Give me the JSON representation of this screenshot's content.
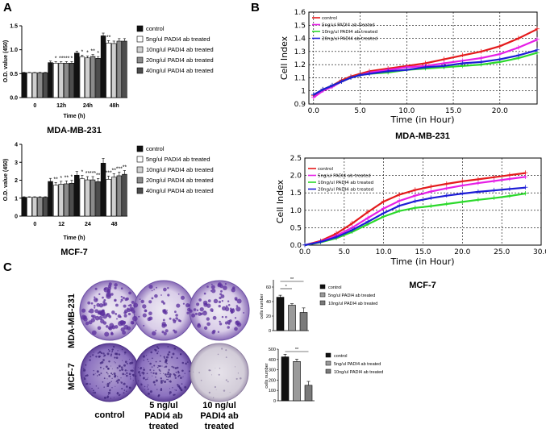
{
  "panels": {
    "a": "A",
    "b": "B",
    "c": "C"
  },
  "chart_data": [
    {
      "id": "a1",
      "type": "bar",
      "title": "MDA-MB-231",
      "xlabel": "Time (h)",
      "ylabel": "O.D. value (450)",
      "ylim": [
        0,
        1.5
      ],
      "yticks": [
        "0.0",
        "0.5",
        "1.0",
        "1.5"
      ],
      "categories": [
        "0",
        "12h",
        "24h",
        "48h"
      ],
      "series": [
        {
          "name": "control",
          "color": "#111111",
          "values": [
            0.52,
            0.73,
            0.93,
            1.29
          ]
        },
        {
          "name": "5ng/ul PADI4 ab treated",
          "color": "#ffffff",
          "values": [
            0.52,
            0.72,
            0.85,
            1.14
          ]
        },
        {
          "name": "10ng/ul PADI4 ab treated",
          "color": "#cfcfcf",
          "values": [
            0.52,
            0.72,
            0.83,
            1.13
          ]
        },
        {
          "name": "20ng/ul PADI4 ab treated",
          "color": "#8a8a8a",
          "values": [
            0.52,
            0.72,
            0.86,
            1.18
          ]
        },
        {
          "name": "40ng/ul PADI4 ab treated",
          "color": "#4d4d4d",
          "values": [
            0.52,
            0.72,
            0.82,
            1.18
          ]
        }
      ],
      "annotations": [
        "*",
        "**",
        "***",
        "*",
        "*",
        "*",
        "**",
        "*",
        "**"
      ]
    },
    {
      "id": "a2",
      "type": "bar",
      "title": "MCF-7",
      "xlabel": "Time (h)",
      "ylabel": "O.D. value (450)",
      "ylim": [
        0,
        4
      ],
      "yticks": [
        "0",
        "1",
        "2",
        "3",
        "4"
      ],
      "categories": [
        "0",
        "12",
        "24",
        "48"
      ],
      "series": [
        {
          "name": "control",
          "color": "#111111",
          "values": [
            1.05,
            1.93,
            2.28,
            2.95
          ]
        },
        {
          "name": "5ng/ul PADI4 ab treated",
          "color": "#ffffff",
          "values": [
            1.05,
            1.72,
            2.08,
            2.05
          ]
        },
        {
          "name": "10ng/ul PADI4 ab treated",
          "color": "#cfcfcf",
          "values": [
            1.05,
            1.78,
            2.02,
            2.17
          ]
        },
        {
          "name": "20ng/ul PADI4 ab treated",
          "color": "#8a8a8a",
          "values": [
            1.05,
            1.8,
            2.02,
            2.25
          ]
        },
        {
          "name": "40ng/ul PADI4 ab treated",
          "color": "#4d4d4d",
          "values": [
            1.05,
            1.83,
            1.92,
            2.33
          ]
        }
      ],
      "annotations": [
        "**",
        "*",
        "**",
        "*",
        "*",
        "**",
        "***",
        "**",
        "***",
        "**",
        "***",
        "**",
        "**",
        "**",
        "*"
      ]
    },
    {
      "id": "b1",
      "type": "line",
      "title": "MDA-MB-231",
      "xlabel": "Time (in Hour)",
      "ylabel": "Cell Index",
      "xlim": [
        -0.5,
        24.0
      ],
      "ylim": [
        0.9,
        1.6
      ],
      "xticks": [
        "0.0",
        "5.0",
        "10.0",
        "15.0",
        "20.0"
      ],
      "yticks": [
        "0.9",
        "1",
        "1.1",
        "1.2",
        "1.3",
        "1.4",
        "1.5",
        "1.6"
      ],
      "x": [
        0,
        1,
        2,
        3,
        4,
        5,
        6,
        8,
        10,
        12,
        14,
        16,
        18,
        20,
        22,
        24
      ],
      "series": [
        {
          "name": "control",
          "color": "#e41a1c",
          "values": [
            0.96,
            1.01,
            1.04,
            1.08,
            1.11,
            1.13,
            1.15,
            1.17,
            1.19,
            1.21,
            1.24,
            1.27,
            1.3,
            1.34,
            1.4,
            1.47
          ]
        },
        {
          "name": "5ng/ul PADI4 ab treated",
          "color": "#e61ee6",
          "values": [
            0.95,
            1.0,
            1.03,
            1.07,
            1.1,
            1.12,
            1.14,
            1.16,
            1.18,
            1.19,
            1.21,
            1.23,
            1.25,
            1.28,
            1.33,
            1.39
          ]
        },
        {
          "name": "10ng/ul PADI4 ab treated",
          "color": "#2bd92b",
          "values": [
            0.97,
            1.01,
            1.04,
            1.07,
            1.1,
            1.12,
            1.13,
            1.14,
            1.16,
            1.17,
            1.18,
            1.19,
            1.2,
            1.22,
            1.25,
            1.29
          ]
        },
        {
          "name": "20ng/ul PADI4 ab treated",
          "color": "#1c1cd6",
          "values": [
            0.97,
            1.01,
            1.04,
            1.07,
            1.1,
            1.12,
            1.13,
            1.15,
            1.16,
            1.18,
            1.19,
            1.21,
            1.22,
            1.24,
            1.27,
            1.31
          ]
        }
      ]
    },
    {
      "id": "b2",
      "type": "line",
      "title": "MCF-7",
      "xlabel": "Time (in Hour)",
      "ylabel": "Cell Index",
      "xlim": [
        0,
        30
      ],
      "ylim": [
        0,
        2.5
      ],
      "xticks": [
        "0.0",
        "5.0",
        "10.0",
        "15.0",
        "20.0",
        "25.0",
        "30.0"
      ],
      "yticks": [
        "0.0",
        "0.5",
        "1.0",
        "1.5",
        "2.0",
        "2.5"
      ],
      "x": [
        0,
        2,
        4,
        6,
        8,
        10,
        12,
        14,
        16,
        18,
        20,
        22,
        24,
        26,
        28
      ],
      "series": [
        {
          "name": "control",
          "color": "#e41a1c",
          "values": [
            0.0,
            0.12,
            0.33,
            0.62,
            0.95,
            1.25,
            1.45,
            1.58,
            1.68,
            1.76,
            1.83,
            1.89,
            1.95,
            2.01,
            2.07
          ]
        },
        {
          "name": "5ng/ul PADI4 ab treated",
          "color": "#e61ee6",
          "values": [
            0.0,
            0.1,
            0.27,
            0.5,
            0.78,
            1.05,
            1.27,
            1.42,
            1.54,
            1.63,
            1.71,
            1.78,
            1.84,
            1.9,
            1.96
          ]
        },
        {
          "name": "10ng/ul PADI4 ab treated",
          "color": "#2bd92b",
          "values": [
            0.0,
            0.08,
            0.2,
            0.38,
            0.6,
            0.82,
            0.98,
            1.07,
            1.12,
            1.18,
            1.24,
            1.3,
            1.35,
            1.41,
            1.48
          ]
        },
        {
          "name": "20ng/ul PADI4 ab treated",
          "color": "#1c1cd6",
          "values": [
            0.0,
            0.09,
            0.23,
            0.43,
            0.67,
            0.92,
            1.13,
            1.26,
            1.35,
            1.42,
            1.48,
            1.53,
            1.57,
            1.61,
            1.65
          ]
        }
      ]
    },
    {
      "id": "c1",
      "type": "bar",
      "ylabel": "cells number",
      "ylim": [
        0,
        70
      ],
      "yticks": [
        "0",
        "20",
        "40",
        "60"
      ],
      "categories": [
        "control",
        "5ng/ul PADI4 ab treated",
        "10ng/ul PADI4 ab treated"
      ],
      "values": [
        46,
        35,
        25
      ],
      "colors": [
        "#111111",
        "#9a9a9a",
        "#7a7a7a"
      ],
      "annotations": [
        "*",
        "**"
      ]
    },
    {
      "id": "c2",
      "type": "bar",
      "ylabel": "cells number",
      "ylim": [
        0,
        500
      ],
      "yticks": [
        "0",
        "100",
        "200",
        "300",
        "400",
        "500"
      ],
      "categories": [
        "control",
        "5ng/ul PADI4 ab treated",
        "10ng/ul PADI4 ab treated"
      ],
      "values": [
        425,
        380,
        150
      ],
      "colors": [
        "#111111",
        "#9a9a9a",
        "#7a7a7a"
      ],
      "annotations": [
        "**"
      ]
    }
  ],
  "colony": {
    "row_labels": [
      "MDA-MB-231",
      "MCF-7"
    ],
    "col_labels": [
      [
        "control"
      ],
      [
        "5 ng/ul",
        "PADI4 ab",
        "treated"
      ],
      [
        "10 ng/ul",
        "PADI4 ab",
        "treated"
      ]
    ]
  }
}
